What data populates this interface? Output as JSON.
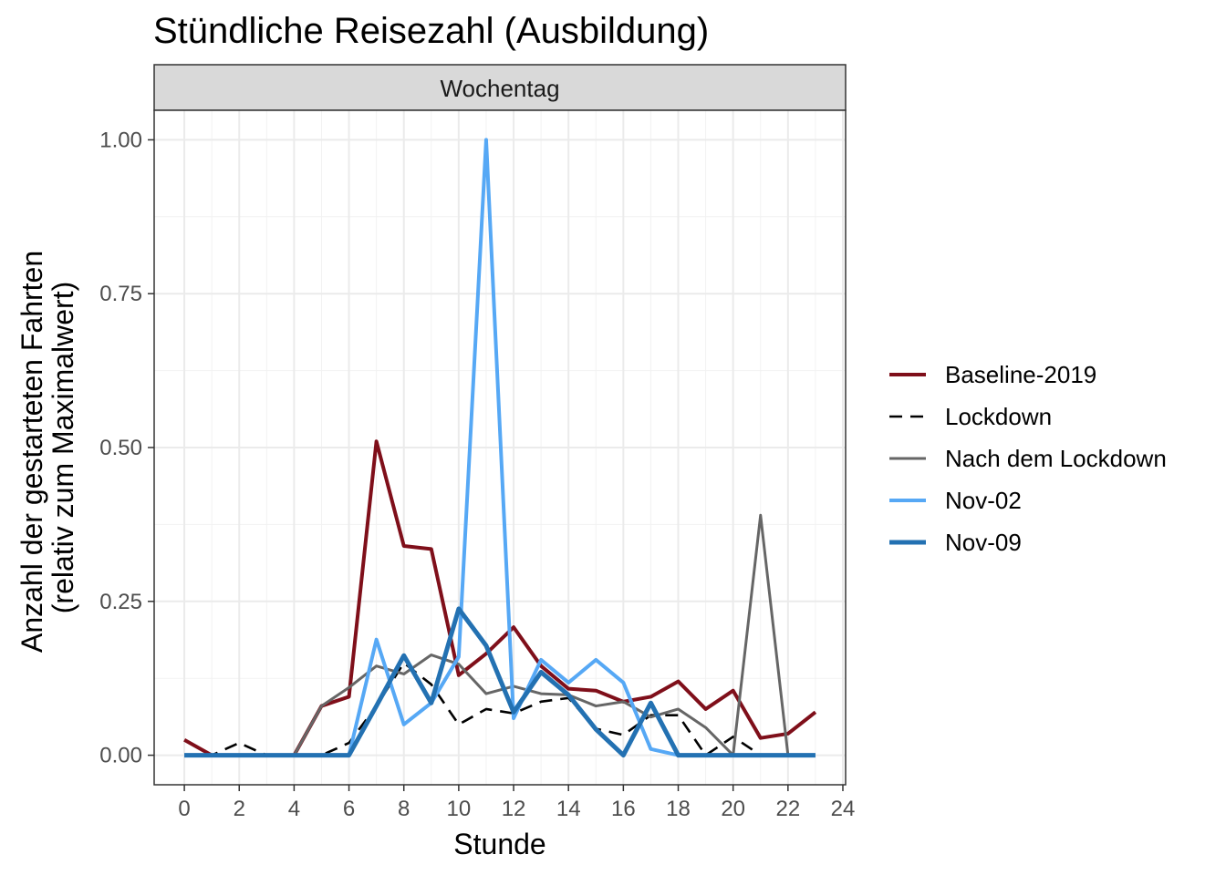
{
  "chart_data": {
    "type": "line",
    "title": "Stündliche Reisezahl (Ausbildung)",
    "facet": "Wochentag",
    "xlabel": "Stunde",
    "ylabel_lines": [
      "Anzahl der gestarteten Fahrten",
      "(relativ zum Maximalwert)"
    ],
    "xlim": [
      -1.1,
      24.1
    ],
    "ylim": [
      -0.048,
      1.048
    ],
    "x_ticks": [
      0,
      2,
      4,
      6,
      8,
      10,
      12,
      14,
      16,
      18,
      20,
      22,
      24
    ],
    "x_tick_labels": [
      "0",
      "2",
      "4",
      "6",
      "8",
      "10",
      "12",
      "14",
      "16",
      "18",
      "20",
      "22",
      "24"
    ],
    "y_ticks": [
      0,
      0.25,
      0.5,
      0.75,
      1.0
    ],
    "y_tick_labels": [
      "0.00",
      "0.25",
      "0.50",
      "0.75",
      "1.00"
    ],
    "legend_position": "right",
    "grid": true,
    "x": [
      0,
      1,
      2,
      3,
      4,
      5,
      6,
      7,
      8,
      9,
      10,
      11,
      12,
      13,
      14,
      15,
      16,
      17,
      18,
      19,
      20,
      21,
      22,
      23
    ],
    "series": [
      {
        "name": "Baseline-2019",
        "color": "#7f0f1a",
        "dash": "solid",
        "width": 4,
        "values": [
          0.025,
          0,
          0,
          0,
          0,
          0.08,
          0.095,
          0.51,
          0.34,
          0.335,
          0.13,
          0.165,
          0.208,
          0.145,
          0.108,
          0.105,
          0.087,
          0.095,
          0.12,
          0.075,
          0.105,
          0.028,
          0.035,
          0.07
        ]
      },
      {
        "name": "Lockdown",
        "color": "#000000",
        "dash": "dashed",
        "width": 2.6,
        "values": [
          0,
          0,
          0.02,
          0,
          0,
          0,
          0.02,
          0.08,
          0.15,
          0.115,
          0.05,
          0.075,
          0.068,
          0.087,
          0.093,
          0.043,
          0.033,
          0.065,
          0.065,
          0,
          0.03,
          0,
          0,
          0
        ]
      },
      {
        "name": "Nach dem Lockdown",
        "color": "#666666",
        "dash": "solid",
        "width": 3,
        "values": [
          0,
          0,
          0,
          0,
          0,
          0.08,
          0.11,
          0.145,
          0.132,
          0.163,
          0.148,
          0.1,
          0.112,
          0.1,
          0.098,
          0.08,
          0.087,
          0.062,
          0.075,
          0.045,
          0,
          0.39,
          0,
          0
        ]
      },
      {
        "name": "Nov-02",
        "color": "#56a8f5",
        "dash": "solid",
        "width": 4,
        "values": [
          0,
          0,
          0,
          0,
          0,
          0,
          0,
          0.188,
          0.05,
          0.085,
          0.16,
          1.0,
          0.06,
          0.155,
          0.118,
          0.155,
          0.118,
          0.01,
          0,
          0,
          0,
          0,
          0,
          0
        ]
      },
      {
        "name": "Nov-09",
        "color": "#2371b2",
        "dash": "solid",
        "width": 5,
        "values": [
          0,
          0,
          0,
          0,
          0,
          0,
          0,
          0.08,
          0.162,
          0.085,
          0.238,
          0.178,
          0.07,
          0.135,
          0.098,
          0.042,
          0,
          0.085,
          0,
          0,
          0,
          0,
          0,
          0
        ]
      }
    ]
  }
}
